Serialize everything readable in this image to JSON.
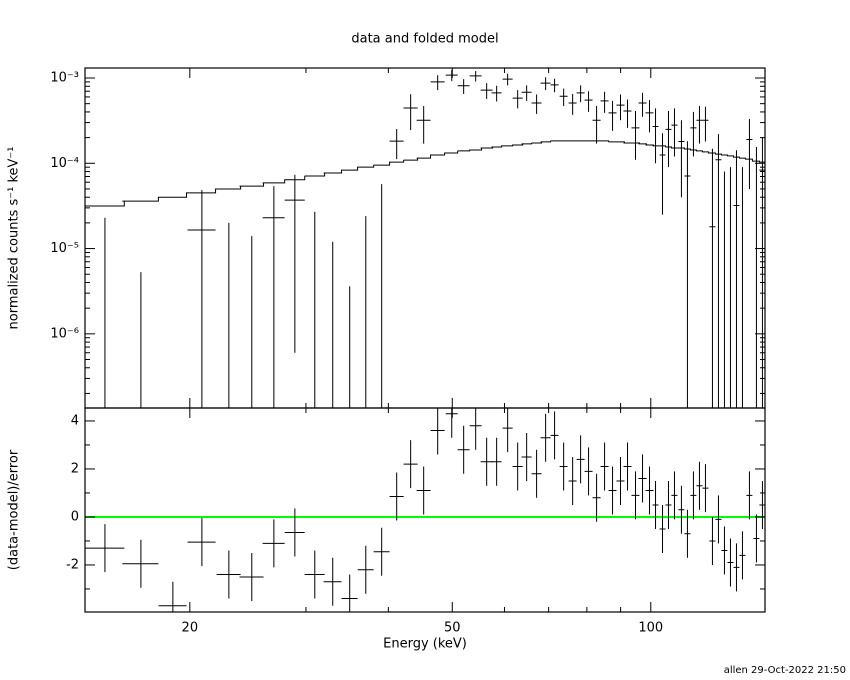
{
  "chart_data": [
    {
      "type": "errorbar",
      "title": "data and folded model",
      "ylabel": "normalized counts s⁻¹ keV⁻¹",
      "log_x": true,
      "log_y": true,
      "color": "#000000",
      "xlim": [
        13.87,
        149
      ],
      "ylim": [
        1.35e-07,
        0.00131
      ],
      "yticks": [
        {
          "value": 0.001,
          "label": "10⁻³"
        },
        {
          "value": 0.0001,
          "label": "10⁻⁴"
        },
        {
          "value": 1e-05,
          "label": "10⁻⁵"
        },
        {
          "value": 1e-06,
          "label": "10⁻⁶"
        }
      ],
      "yminorticks": [
        2e-07,
        3e-07,
        4e-07,
        5e-07,
        6e-07,
        7e-07,
        8e-07,
        9e-07,
        2e-06,
        3e-06,
        4e-06,
        5e-06,
        6e-06,
        7e-06,
        8e-06,
        9e-06,
        2e-05,
        3e-05,
        4e-05,
        5e-05,
        6e-05,
        7e-05,
        8e-05,
        9e-05,
        0.0002,
        0.0003,
        0.0004,
        0.0005,
        0.0006,
        0.0007,
        0.0008,
        0.0009
      ],
      "x": [
        14.87,
        16.86,
        18.85,
        20.86,
        22.92,
        24.83,
        26.82,
        28.86,
        30.94,
        32.94,
        34.95,
        36.97,
        39.08,
        41.18,
        43.24,
        45.25,
        47.52,
        49.91,
        52.03,
        54.26,
        56.38,
        58.38,
        60.67,
        62.83,
        64.83,
        67.12,
        69.27,
        71.47,
        73.77,
        76.12,
        78.27,
        80.47,
        82.76,
        85.1,
        87.5,
        89.97,
        92.2,
        94.8,
        97.16,
        99.56,
        101.67,
        104.18,
        106.37,
        108.62,
        111.29,
        113.65,
        116.06,
        118.52,
        121.03,
        124.02,
        126.65,
        129.33,
        132.07,
        134.87,
        137.72,
        141.12,
        144.61,
        147.67
      ],
      "x_err": [
        1.04,
        1.06,
        0.92,
        1.02,
        0.96,
        1.04,
        1.03,
        1.01,
        1.08,
        1.03,
        0.98,
        1.03,
        1.09,
        1.01,
        1.06,
        1.1,
        1.16,
        1.04,
        1.09,
        1.13,
        1.18,
        1.02,
        1.06,
        1.1,
        1.13,
        1.17,
        1.21,
        1.0,
        1.03,
        1.06,
        1.09,
        1.12,
        1.16,
        1.19,
        1.22,
        1.26,
        1.29,
        1.32,
        1.36,
        1.39,
        1.06,
        1.09,
        1.11,
        1.14,
        1.17,
        1.19,
        1.22,
        1.24,
        1.27,
        1.3,
        1.33,
        1.35,
        1.38,
        1.41,
        1.44,
        1.48,
        1.51,
        1.55
      ],
      "y": [
        0,
        -5e-06,
        -2e-05,
        1.65e-05,
        -1e-05,
        -1e-05,
        2.3e-05,
        3.7e-05,
        -1e-05,
        -1e-05,
        -2e-05,
        -5e-06,
        -1e-05,
        0.000182,
        0.000445,
        0.00032,
        0.0009,
        0.00108,
        0.00081,
        0.00106,
        0.00072,
        0.00067,
        0.00097,
        0.00058,
        0.00068,
        0.00051,
        0.00087,
        0.00083,
        0.00061,
        0.00051,
        0.00067,
        0.00055,
        0.00032,
        0.00054,
        0.00039,
        0.00048,
        0.00041,
        0.00026,
        0.00051,
        0.00039,
        0.00027,
        0.000125,
        0.00025,
        0.00028,
        0.00018,
        7.1e-05,
        0.00026,
        0.00032,
        0.00032,
        1.8e-05,
        0.00011,
        -1e-05,
        -3e-05,
        3.2e-05,
        -2e-05,
        0.00019,
        -5e-06,
        8.3e-05
      ],
      "y_err": [
        2.3e-05,
        1.03e-05,
        1e-05,
        3.2e-05,
        3e-05,
        2.4e-05,
        3.1e-05,
        3.64e-05,
        3.7e-05,
        2.2e-05,
        2.36e-05,
        2.9e-05,
        6.7e-05,
        7e-05,
        0.0002,
        0.00015,
        0.00018,
        0.00016,
        0.00016,
        0.00015,
        0.00015,
        0.00014,
        0.00015,
        0.00014,
        0.00014,
        0.00013,
        0.00015,
        0.00015,
        0.00014,
        0.00014,
        0.00015,
        0.00015,
        0.00015,
        0.00015,
        0.00015,
        0.00016,
        0.00015,
        0.00015,
        0.00016,
        0.00016,
        0.00017,
        0.0001,
        0.00016,
        0.00016,
        0.00014,
        0.00011,
        0.00014,
        0.00015,
        0.00014,
        0.00013,
        0.00011,
        9e-05,
        0.00012,
        0.00011,
        0.00011,
        0.00014,
        0.00016,
        0.00012
      ],
      "model": [
        3.16e-05,
        3.6e-05,
        4e-05,
        4.5e-05,
        5e-05,
        5.4e-05,
        5.9e-05,
        6.4e-05,
        7.1e-05,
        7.7e-05,
        8.3e-05,
        9e-05,
        9.5e-05,
        0.000103,
        0.000109,
        0.000115,
        0.000125,
        0.000132,
        0.00014,
        0.000143,
        0.000151,
        0.000155,
        0.00016,
        0.000164,
        0.000169,
        0.000173,
        0.000178,
        0.000183,
        0.000183,
        0.000183,
        0.000183,
        0.000183,
        0.000183,
        0.000183,
        0.000178,
        0.000178,
        0.000173,
        0.000173,
        0.000169,
        0.000164,
        0.00016,
        0.00016,
        0.000155,
        0.000151,
        0.000151,
        0.000147,
        0.000143,
        0.00014,
        0.000136,
        0.000132,
        0.000128,
        0.000125,
        0.000122,
        0.000118,
        0.000115,
        0.000112,
        0.000106,
        0.000103
      ]
    },
    {
      "type": "residual",
      "xlabel": "Energy (keV)",
      "ylabel": "(data-model)/error",
      "xticks": [
        20,
        50,
        100
      ],
      "xminorticks": [
        30,
        40,
        60,
        70,
        80,
        90
      ],
      "ylim": [
        -3.96,
        4.54
      ],
      "yticks": [
        4,
        2,
        0,
        -2
      ],
      "yminorticks": [
        3,
        1,
        -1,
        -3
      ],
      "reference_line": {
        "value": 0,
        "color": "#00ff00"
      },
      "error": 1,
      "values": [
        -1.3,
        -1.95,
        -3.7,
        -1.05,
        -2.4,
        -2.5,
        -1.1,
        -0.65,
        -2.4,
        -2.7,
        -3.4,
        -2.2,
        -1.45,
        0.85,
        2.2,
        1.1,
        3.6,
        4.3,
        2.8,
        3.8,
        2.3,
        2.3,
        3.7,
        2.1,
        2.5,
        1.8,
        3.3,
        3.4,
        2.1,
        1.5,
        2.4,
        1.9,
        0.8,
        2.1,
        1.1,
        1.5,
        2.1,
        0.9,
        1.6,
        1.1,
        0.5,
        -0.5,
        0.5,
        0.9,
        0.3,
        -0.7,
        0.9,
        1.3,
        1.2,
        -1.0,
        -0.1,
        -1.4,
        -1.9,
        -2.1,
        -1.6,
        0.9,
        -0.9,
        0.5
      ],
      "annotation": "allen 29-Oct-2022 21:50"
    }
  ]
}
